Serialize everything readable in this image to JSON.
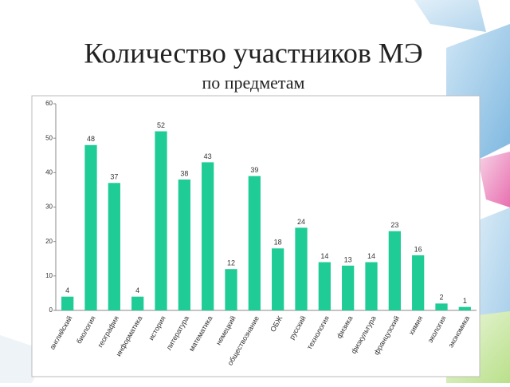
{
  "chart_data": {
    "type": "bar",
    "title": "Количество участников МЭ",
    "subtitle": "по предметам",
    "categories": [
      "английский",
      "биология",
      "география",
      "информатика",
      "история",
      "литература",
      "математика",
      "немецкий",
      "обществознание",
      "ОБЖ",
      "русский",
      "технология",
      "физика",
      "физкультура",
      "французский",
      "химия",
      "экология",
      "экономика"
    ],
    "values": [
      4,
      48,
      37,
      4,
      52,
      38,
      43,
      12,
      39,
      18,
      24,
      14,
      13,
      14,
      23,
      16,
      2,
      1
    ],
    "color": "#1fcc96",
    "ylim": [
      0,
      60
    ],
    "yticks": [
      0,
      10,
      20,
      30,
      40,
      50,
      60
    ],
    "grid": false
  }
}
